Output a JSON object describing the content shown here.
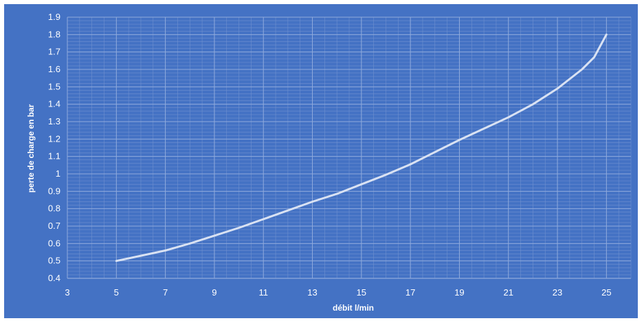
{
  "chart_data": {
    "type": "line",
    "title": "",
    "xlabel": "débit l/min",
    "ylabel": "perte de charge en bar",
    "xlim": [
      3,
      26
    ],
    "ylim": [
      0.4,
      1.9
    ],
    "x_ticks": [
      3,
      5,
      7,
      9,
      11,
      13,
      15,
      17,
      19,
      21,
      23,
      25
    ],
    "y_ticks": [
      0.4,
      0.5,
      0.6,
      0.7,
      0.8,
      0.9,
      1,
      1.1,
      1.2,
      1.3,
      1.4,
      1.5,
      1.6,
      1.7,
      1.8,
      1.9
    ],
    "grid": true,
    "legend": "none",
    "colors": {
      "background": "#4472c4",
      "line": "#d9e2f3",
      "grid_major": "#8faadc",
      "grid_minor": "#6f90cf",
      "text": "#ffffff"
    },
    "series": [
      {
        "x": [
          5,
          6,
          7,
          8,
          9,
          10,
          11,
          12,
          13,
          14,
          15,
          16,
          17,
          18,
          19,
          20,
          21,
          22,
          23,
          24,
          24.5,
          25
        ],
        "y": [
          0.5,
          0.53,
          0.56,
          0.6,
          0.645,
          0.69,
          0.74,
          0.79,
          0.84,
          0.885,
          0.94,
          0.995,
          1.055,
          1.125,
          1.195,
          1.26,
          1.325,
          1.4,
          1.49,
          1.6,
          1.67,
          1.8
        ]
      }
    ]
  }
}
